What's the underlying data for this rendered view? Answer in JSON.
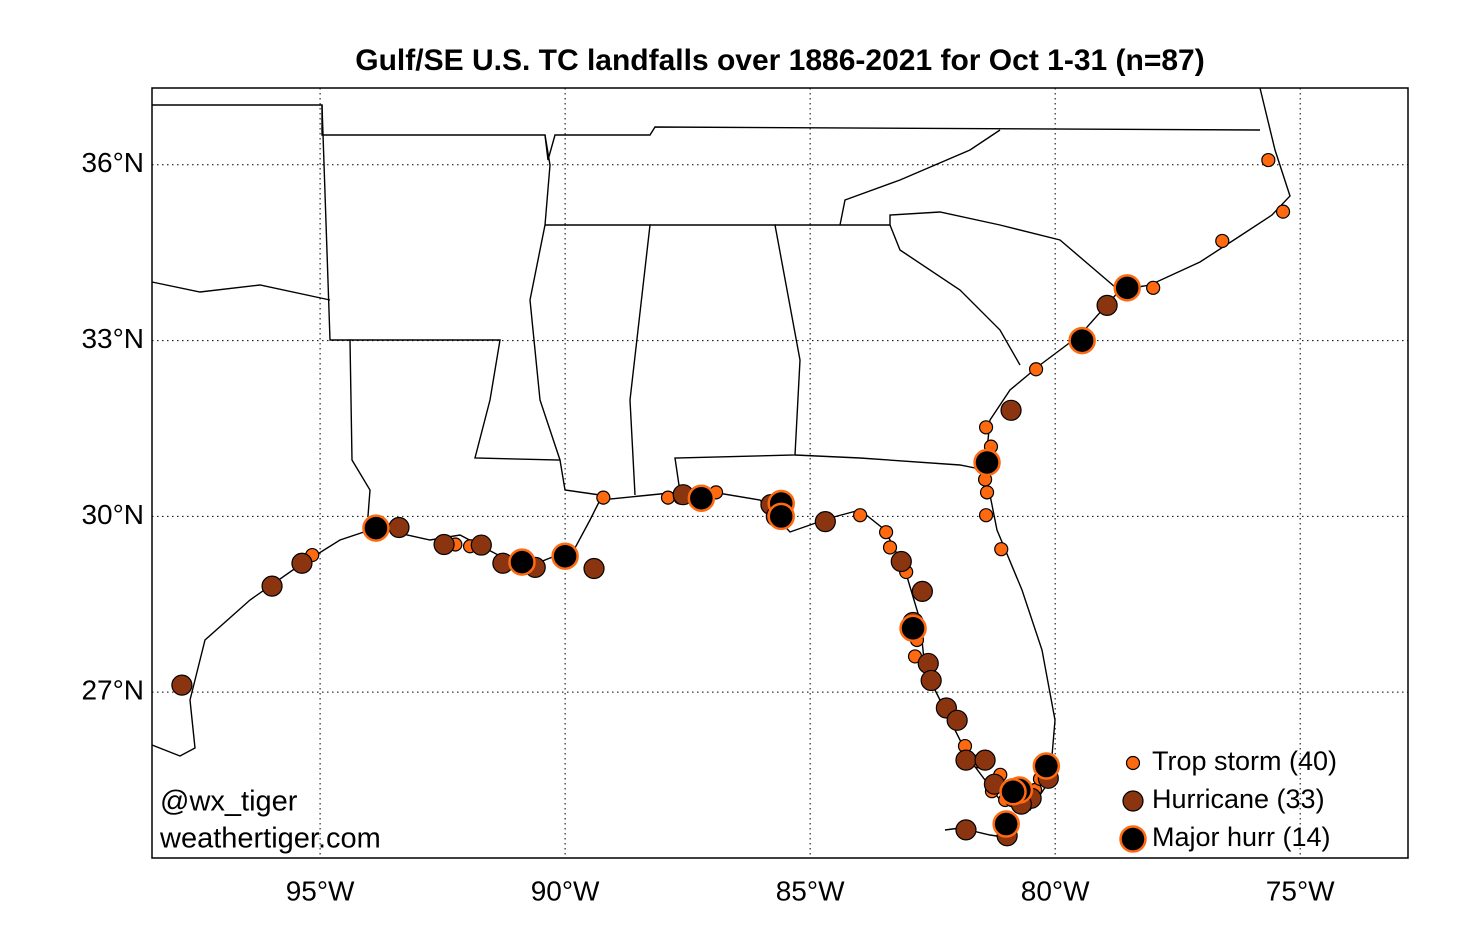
{
  "chart_data": {
    "type": "scatter",
    "title": "Gulf/SE U.S. TC landfalls over 1886-2021 for Oct 1-31 (n=87)",
    "xlim": [
      -98.43,
      -72.8
    ],
    "ylim": [
      24.17,
      37.31
    ],
    "xticks": [
      {
        "value": -95,
        "label": "95°W"
      },
      {
        "value": -90,
        "label": "90°W"
      },
      {
        "value": -85,
        "label": "85°W"
      },
      {
        "value": -80,
        "label": "80°W"
      },
      {
        "value": -75,
        "label": "75°W"
      }
    ],
    "yticks": [
      {
        "value": 27,
        "label": "27°N"
      },
      {
        "value": 30,
        "label": "30°N"
      },
      {
        "value": 33,
        "label": "33°N"
      },
      {
        "value": 36,
        "label": "36°N"
      }
    ],
    "grid": true,
    "legend": "lower right",
    "annotations": [
      "@wx_tiger",
      "weathertiger.com"
    ],
    "series": [
      {
        "name": "Trop storm (40)",
        "color": "#ff6a10",
        "edgecolor": "#000000",
        "x": [
          -75.65,
          -75.35,
          -76.59,
          -78.0,
          -80.39,
          -81.41,
          -81.31,
          -81.43,
          -81.39,
          -81.41,
          -81.1,
          -89.22,
          -87.9,
          -87.65,
          -87.45,
          -86.92,
          -83.98,
          -83.45,
          -83.37,
          -83.04,
          -82.82,
          -82.86,
          -82.27,
          -81.94,
          -81.84,
          -81.57,
          -81.2,
          -81.29,
          -81.02,
          -80.41,
          -80.57,
          -80.31,
          -91.94,
          -92.24,
          -91.33,
          -95.16,
          -89.37,
          -81.0,
          -82.04,
          -81.12
        ],
        "y": [
          36.08,
          35.2,
          34.7,
          33.9,
          32.51,
          31.52,
          31.19,
          30.63,
          30.41,
          30.02,
          29.44,
          30.32,
          30.32,
          30.32,
          30.34,
          30.41,
          30.02,
          29.73,
          29.47,
          29.05,
          27.89,
          27.61,
          26.74,
          26.49,
          26.08,
          25.82,
          25.5,
          25.31,
          25.16,
          25.33,
          25.14,
          25.52,
          29.49,
          29.52,
          29.22,
          29.34,
          29.11,
          24.77,
          26.56,
          25.59
        ]
      },
      {
        "name": "Hurricane (33)",
        "color": "#8b3510",
        "edgecolor": "#000000",
        "x": [
          -97.82,
          -95.98,
          -95.37,
          -93.39,
          -92.47,
          -91.71,
          -91.27,
          -90.61,
          -89.41,
          -87.59,
          -85.8,
          -84.69,
          -83.14,
          -82.71,
          -82.59,
          -82.53,
          -82.22,
          -82.0,
          -81.82,
          -81.43,
          -81.24,
          -80.84,
          -80.49,
          -80.14,
          -79.45,
          -78.94,
          -80.9,
          -81.82,
          -80.98,
          -80.69,
          -82.9,
          -85.69,
          -79.49
        ],
        "y": [
          27.12,
          28.81,
          29.2,
          29.81,
          29.52,
          29.51,
          29.2,
          29.13,
          29.11,
          30.37,
          30.2,
          29.91,
          29.23,
          28.72,
          27.49,
          27.2,
          26.73,
          26.52,
          25.84,
          25.84,
          25.43,
          25.21,
          25.19,
          25.53,
          33.0,
          33.6,
          31.81,
          24.65,
          24.55,
          25.09,
          28.19,
          30.0,
          32.97
        ]
      },
      {
        "name": "Major hurr (14)",
        "color": "#000000",
        "edgecolor": "#ff6a10",
        "x": [
          -93.86,
          -90.88,
          -90.0,
          -87.22,
          -85.59,
          -85.59,
          -82.9,
          -81.39,
          -78.53,
          -79.45,
          -80.73,
          -80.18,
          -81.0,
          -80.86
        ],
        "y": [
          29.8,
          29.22,
          29.32,
          30.31,
          30.22,
          30.0,
          28.09,
          30.92,
          33.9,
          33.0,
          25.33,
          25.74,
          24.75,
          25.3
        ]
      }
    ]
  }
}
